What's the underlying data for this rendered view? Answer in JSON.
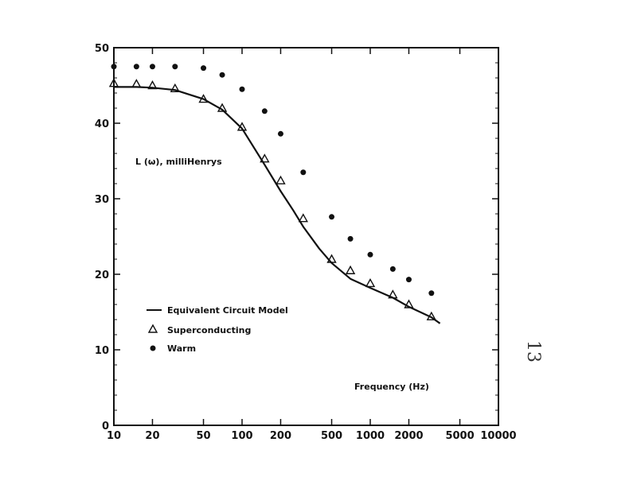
{
  "page_number": "13",
  "chart_data": {
    "type": "scatter",
    "x_scale": "log",
    "xlim": [
      10,
      10000
    ],
    "ylim": [
      0,
      50
    ],
    "x_ticks": [
      10,
      20,
      50,
      100,
      200,
      500,
      1000,
      2000,
      5000,
      10000
    ],
    "x_tick_labels": [
      "10",
      "20",
      "50",
      "100",
      "200",
      "500",
      "1000",
      "2000",
      "5000",
      "10000"
    ],
    "y_ticks": [
      0,
      10,
      20,
      30,
      40,
      50
    ],
    "y_tick_labels": [
      "0",
      "10",
      "20",
      "30",
      "40",
      "50"
    ],
    "ylabel": "L (ω), milliHenrys",
    "xlabel": "Frequency (Hz)",
    "grid": false,
    "legend_position": "lower-left",
    "series": [
      {
        "name": "Equivalent Circuit Model",
        "marker": "line",
        "x": [
          10,
          15,
          20,
          30,
          50,
          70,
          100,
          150,
          200,
          250,
          300,
          400,
          500,
          700,
          1000,
          1500,
          2000,
          3000,
          3500
        ],
        "y": [
          44.8,
          44.8,
          44.7,
          44.4,
          43.2,
          41.8,
          39.3,
          34.5,
          31.0,
          28.5,
          26.3,
          23.4,
          21.5,
          19.4,
          18.2,
          16.9,
          15.7,
          14.3,
          13.5
        ]
      },
      {
        "name": "Superconducting",
        "marker": "triangle",
        "x": [
          10,
          15,
          20,
          30,
          50,
          70,
          100,
          150,
          200,
          300,
          500,
          700,
          1000,
          1500,
          2000,
          3000
        ],
        "y": [
          45.3,
          45.2,
          45.0,
          44.6,
          43.2,
          42.0,
          39.5,
          35.3,
          32.4,
          27.4,
          22.0,
          20.5,
          18.8,
          17.3,
          16.0,
          14.4
        ]
      },
      {
        "name": "Warm",
        "marker": "dot",
        "x": [
          10,
          15,
          20,
          30,
          50,
          70,
          100,
          150,
          200,
          300,
          500,
          700,
          1000,
          1500,
          2000,
          3000
        ],
        "y": [
          47.5,
          47.5,
          47.5,
          47.5,
          47.3,
          46.4,
          44.5,
          41.6,
          38.6,
          33.5,
          27.6,
          24.7,
          22.6,
          20.7,
          19.3,
          17.5
        ]
      }
    ]
  }
}
